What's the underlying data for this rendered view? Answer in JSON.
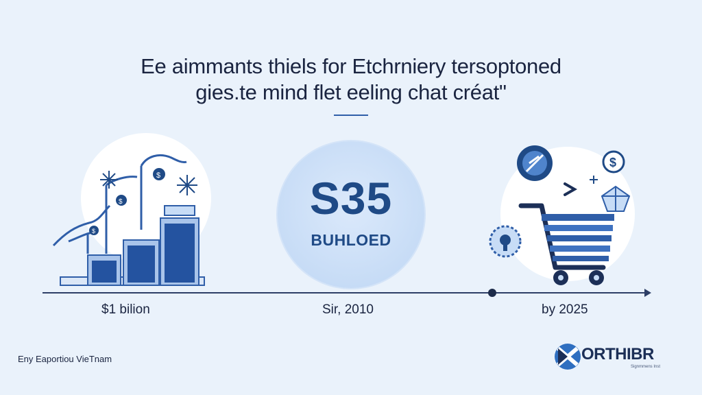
{
  "title": {
    "line1": "Ee aimmants thiels for Etchrniery tersoptoned",
    "line2": "gies.te mind flet eeling chat créat\""
  },
  "center": {
    "value": "S35",
    "sublabel": "BUHLOED"
  },
  "timeline": {
    "labels": [
      "$1 bilion",
      "Sir, 2010",
      "by 2025"
    ]
  },
  "footer": {
    "left_text": "Eny Eaportiou VieTnam",
    "logo_text": "ORTHIBR",
    "logo_subtext": "Signmmens Inst"
  },
  "icons": {
    "left_group": [
      "bar-chart-icon",
      "crane-icon",
      "dollar-coin-icon",
      "snowflake-icon"
    ],
    "right_group": [
      "shopping-cart-icon",
      "gear-badge-icon",
      "dollar-coin-icon",
      "bulb-gear-icon",
      "gem-icon",
      "arrow-right-icon"
    ],
    "logo": "logo-x-icon"
  },
  "colors": {
    "background": "#eaf2fb",
    "accent_dark": "#1f4a86",
    "accent_mid": "#2f5ea8",
    "circle_fill": "#c7dcf6",
    "text": "#1a2440"
  }
}
